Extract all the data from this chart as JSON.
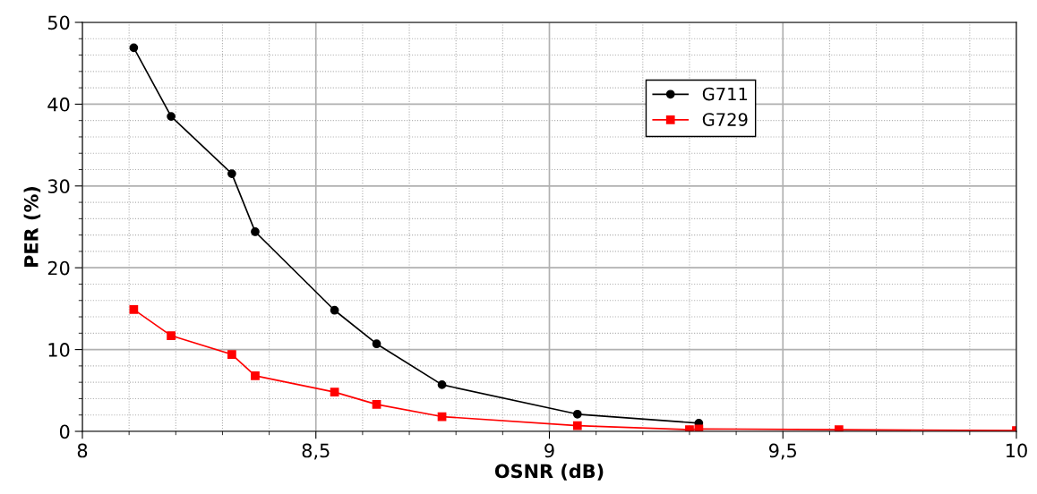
{
  "chart_data": {
    "type": "line",
    "xlabel": "OSNR (dB)",
    "ylabel": "PER (%)",
    "xlim": [
      8,
      10
    ],
    "xticks": [
      8,
      {
        "value": 8.5,
        "label": "8,5"
      },
      9,
      {
        "value": 9.5,
        "label": "9,5"
      },
      10
    ],
    "ylim": [
      0,
      50
    ],
    "yticks": [
      0,
      10,
      20,
      30,
      40,
      50
    ],
    "grid": true,
    "legend": "top right",
    "series": [
      {
        "name": "G711",
        "color": "#000000",
        "marker": "circle",
        "x": [
          8.11,
          8.19,
          8.32,
          8.37,
          8.54,
          8.63,
          8.77,
          9.06,
          9.32
        ],
        "values": [
          46.9,
          38.5,
          31.5,
          24.4,
          14.8,
          10.7,
          5.7,
          2.1,
          1.0
        ]
      },
      {
        "name": "G729",
        "color": "#ff0000",
        "marker": "square",
        "x": [
          8.11,
          8.19,
          8.32,
          8.37,
          8.54,
          8.63,
          8.77,
          9.06,
          9.3,
          9.32,
          9.62,
          10
        ],
        "values": [
          14.9,
          11.7,
          9.4,
          6.8,
          4.8,
          3.3,
          1.8,
          0.7,
          0.2,
          0.3,
          0.2,
          0.1
        ]
      }
    ]
  }
}
